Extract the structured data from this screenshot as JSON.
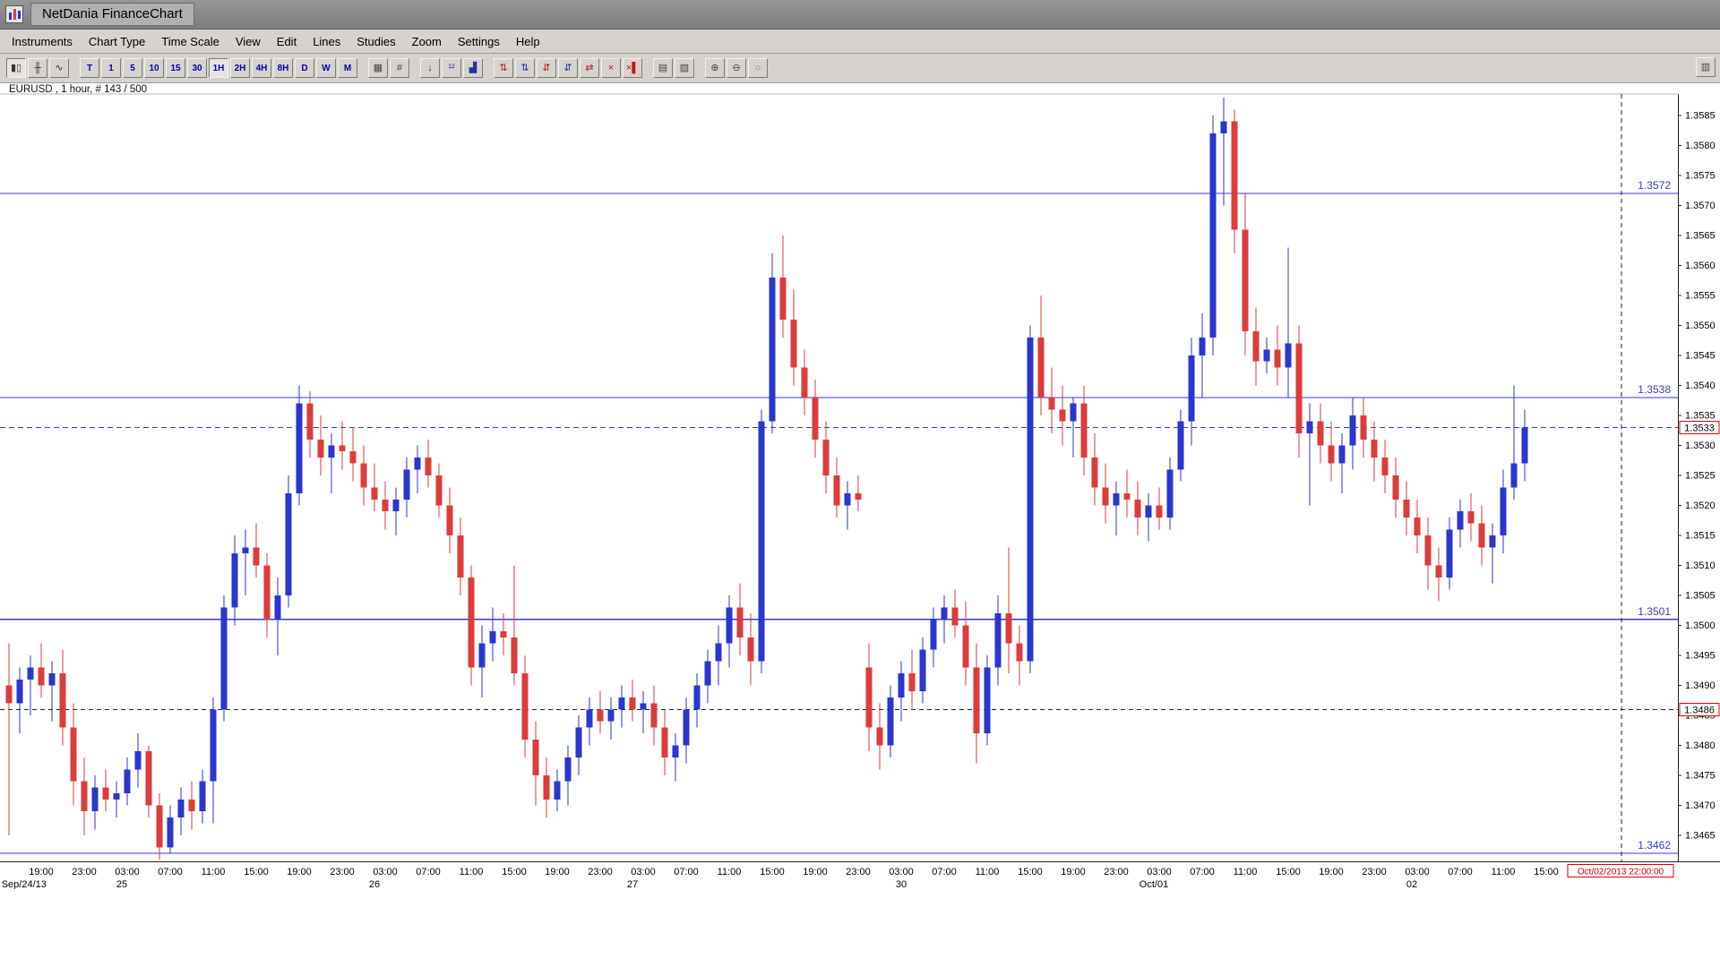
{
  "window": {
    "title": "NetDania FinanceChart"
  },
  "menu": {
    "items": [
      "Instruments",
      "Chart Type",
      "Time Scale",
      "View",
      "Edit",
      "Lines",
      "Studies",
      "Zoom",
      "Settings",
      "Help"
    ]
  },
  "toolbar": {
    "groups": [
      {
        "name": "chart-type",
        "buttons": [
          {
            "name": "candlestick-chart-button",
            "glyph": "▮▯",
            "selected": true,
            "color": "#333333"
          },
          {
            "name": "bar-chart-button",
            "glyph": "╫",
            "color": "#333333"
          },
          {
            "name": "line-chart-button",
            "glyph": "∿",
            "color": "#333333"
          }
        ]
      },
      {
        "name": "timeframes",
        "buttons": [
          {
            "name": "timeframe-tick-button",
            "label": "T"
          },
          {
            "name": "timeframe-1m-button",
            "label": "1"
          },
          {
            "name": "timeframe-5m-button",
            "label": "5"
          },
          {
            "name": "timeframe-10m-button",
            "label": "10"
          },
          {
            "name": "timeframe-15m-button",
            "label": "15"
          },
          {
            "name": "timeframe-30m-button",
            "label": "30"
          },
          {
            "name": "timeframe-1h-button",
            "label": "1H",
            "selected": true
          },
          {
            "name": "timeframe-2h-button",
            "label": "2H"
          },
          {
            "name": "timeframe-4h-button",
            "label": "4H"
          },
          {
            "name": "timeframe-8h-button",
            "label": "8H"
          },
          {
            "name": "timeframe-1d-button",
            "label": "D"
          },
          {
            "name": "timeframe-1w-button",
            "label": "W"
          },
          {
            "name": "timeframe-1mo-button",
            "label": "M"
          }
        ]
      },
      {
        "name": "layout",
        "buttons": [
          {
            "name": "grid-button",
            "glyph": "▦",
            "color": "#444444"
          },
          {
            "name": "crosshair-button",
            "glyph": "#",
            "color": "#444444"
          }
        ]
      },
      {
        "name": "annotations",
        "buttons": [
          {
            "name": "data-cursor-button",
            "glyph": "↓",
            "color": "#223399"
          },
          {
            "name": "price-levels-button",
            "glyph": "¹²",
            "color": "#223399"
          },
          {
            "name": "volume-button",
            "glyph": "▟",
            "color": "#223399"
          }
        ]
      },
      {
        "name": "signals",
        "buttons": [
          {
            "name": "arrows-up-down-red-button",
            "glyph": "⇅",
            "color": "#aa2222"
          },
          {
            "name": "arrows-up-down-blue-button",
            "glyph": "⇅",
            "color": "#2233aa"
          },
          {
            "name": "arrows-pair-red-button",
            "glyph": "⇵",
            "color": "#aa2222"
          },
          {
            "name": "arrows-pair-blue-button",
            "glyph": "⇵",
            "color": "#2233aa"
          },
          {
            "name": "edit-signals-button",
            "glyph": "⇄",
            "color": "#aa2222"
          },
          {
            "name": "delete-signal-button",
            "glyph": "×",
            "color": "#cc1111"
          },
          {
            "name": "delete-all-signals-button",
            "glyph": "×▌",
            "color": "#cc1111"
          }
        ]
      },
      {
        "name": "print",
        "buttons": [
          {
            "name": "print-button",
            "glyph": "▤",
            "color": "#444444"
          },
          {
            "name": "print-preview-button",
            "glyph": "▧",
            "color": "#444444"
          }
        ]
      },
      {
        "name": "zoom",
        "buttons": [
          {
            "name": "zoom-in-button",
            "glyph": "⊕",
            "color": "#444444"
          },
          {
            "name": "zoom-out-button",
            "glyph": "⊖",
            "color": "#444444"
          },
          {
            "name": "zoom-reset-button",
            "glyph": "○",
            "color": "#777777"
          }
        ]
      }
    ],
    "right_buttons": [
      {
        "name": "panel-toggle-button",
        "glyph": "▥",
        "color": "#444444"
      }
    ]
  },
  "chart_info": "EURUSD , 1 hour, # 143 / 500",
  "chart_data": {
    "type": "candlestick",
    "symbol": "EURUSD",
    "timeframe": "1 hour",
    "up_color": "#2b35cf",
    "down_color": "#de3b3b",
    "line_color": "#3a3ac8",
    "h_lines": [
      1.3572,
      1.3538,
      1.3501,
      1.3462
    ],
    "price_line": {
      "value": 1.3533,
      "label": "1.3533",
      "color": "#3a3ac8"
    },
    "dashed_line": {
      "value": 1.3486,
      "label": "1.3486",
      "color": "#222222"
    },
    "v_line": {
      "slot": 150,
      "label": "Oct/02/2013 22:00:00"
    },
    "y_axis": {
      "step": 0.0005,
      "labels": [
        "1.3585",
        "1.3580",
        "1.3575",
        "1.3570",
        "1.3565",
        "1.3560",
        "1.3555",
        "1.3550",
        "1.3545",
        "1.3540",
        "1.3535",
        "1.3530",
        "1.3525",
        "1.3520",
        "1.3515",
        "1.3510",
        "1.3505",
        "1.3500",
        "1.3495",
        "1.3490",
        "1.3485",
        "1.3480",
        "1.3475",
        "1.3470",
        "1.3465"
      ]
    },
    "x_labels": [
      {
        "slot": 3,
        "text": "19:00"
      },
      {
        "slot": 7,
        "text": "23:00"
      },
      {
        "slot": 11,
        "text": "03:00"
      },
      {
        "slot": 15,
        "text": "07:00"
      },
      {
        "slot": 19,
        "text": "11:00"
      },
      {
        "slot": 23,
        "text": "15:00"
      },
      {
        "slot": 27,
        "text": "19:00"
      },
      {
        "slot": 31,
        "text": "23:00"
      },
      {
        "slot": 35,
        "text": "03:00"
      },
      {
        "slot": 39,
        "text": "07:00"
      },
      {
        "slot": 43,
        "text": "11:00"
      },
      {
        "slot": 47,
        "text": "15:00"
      },
      {
        "slot": 51,
        "text": "19:00"
      },
      {
        "slot": 55,
        "text": "23:00"
      },
      {
        "slot": 59,
        "text": "03:00"
      },
      {
        "slot": 63,
        "text": "07:00"
      },
      {
        "slot": 67,
        "text": "11:00"
      },
      {
        "slot": 71,
        "text": "15:00"
      },
      {
        "slot": 75,
        "text": "19:00"
      },
      {
        "slot": 79,
        "text": "23:00"
      },
      {
        "slot": 83,
        "text": "03:00"
      },
      {
        "slot": 87,
        "text": "07:00"
      },
      {
        "slot": 91,
        "text": "11:00"
      },
      {
        "slot": 95,
        "text": "15:00"
      },
      {
        "slot": 99,
        "text": "19:00"
      },
      {
        "slot": 103,
        "text": "23:00"
      },
      {
        "slot": 107,
        "text": "03:00"
      },
      {
        "slot": 111,
        "text": "07:00"
      },
      {
        "slot": 115,
        "text": "11:00"
      },
      {
        "slot": 119,
        "text": "15:00"
      },
      {
        "slot": 123,
        "text": "19:00"
      },
      {
        "slot": 127,
        "text": "23:00"
      },
      {
        "slot": 131,
        "text": "03:00"
      },
      {
        "slot": 135,
        "text": "07:00"
      },
      {
        "slot": 139,
        "text": "11:00"
      },
      {
        "slot": 143,
        "text": "15:00"
      }
    ],
    "date_labels": [
      {
        "slot": 1.4,
        "text": "Sep/24/13"
      },
      {
        "slot": 10.5,
        "text": "25"
      },
      {
        "slot": 34,
        "text": "26"
      },
      {
        "slot": 58,
        "text": "27"
      },
      {
        "slot": 83,
        "text": "30"
      },
      {
        "slot": 106.5,
        "text": "Oct/01"
      },
      {
        "slot": 130.5,
        "text": "02"
      }
    ],
    "candles": [
      [
        1.349,
        1.3497,
        1.3465,
        1.3487
      ],
      [
        1.3487,
        1.3493,
        1.3482,
        1.3491
      ],
      [
        1.3491,
        1.3495,
        1.3485,
        1.3493
      ],
      [
        1.3493,
        1.3497,
        1.3488,
        1.349
      ],
      [
        1.349,
        1.3494,
        1.3484,
        1.3492
      ],
      [
        1.3492,
        1.3496,
        1.348,
        1.3483
      ],
      [
        1.3483,
        1.3487,
        1.347,
        1.3474
      ],
      [
        1.3474,
        1.3478,
        1.3465,
        1.3469
      ],
      [
        1.3469,
        1.3475,
        1.3466,
        1.3473
      ],
      [
        1.3473,
        1.3476,
        1.3469,
        1.3471
      ],
      [
        1.3471,
        1.3474,
        1.3468,
        1.3472
      ],
      [
        1.3472,
        1.3478,
        1.347,
        1.3476
      ],
      [
        1.3476,
        1.3482,
        1.3473,
        1.3479
      ],
      [
        1.3479,
        1.348,
        1.3468,
        1.347
      ],
      [
        1.347,
        1.3472,
        1.3461,
        1.3463
      ],
      [
        1.3463,
        1.347,
        1.3462,
        1.3468
      ],
      [
        1.3468,
        1.3473,
        1.3465,
        1.3471
      ],
      [
        1.3471,
        1.3474,
        1.3466,
        1.3469
      ],
      [
        1.3469,
        1.3476,
        1.3467,
        1.3474
      ],
      [
        1.3474,
        1.3488,
        1.3467,
        1.3486
      ],
      [
        1.3486,
        1.3505,
        1.3484,
        1.3503
      ],
      [
        1.3503,
        1.3515,
        1.35,
        1.3512
      ],
      [
        1.3512,
        1.3516,
        1.3505,
        1.3513
      ],
      [
        1.3513,
        1.3517,
        1.3508,
        1.351
      ],
      [
        1.351,
        1.3512,
        1.3498,
        1.3501
      ],
      [
        1.3501,
        1.3508,
        1.3495,
        1.3505
      ],
      [
        1.3505,
        1.3525,
        1.3503,
        1.3522
      ],
      [
        1.3522,
        1.354,
        1.352,
        1.3537
      ],
      [
        1.3537,
        1.3539,
        1.3528,
        1.3531
      ],
      [
        1.3531,
        1.3535,
        1.3525,
        1.3528
      ],
      [
        1.3528,
        1.3532,
        1.3522,
        1.353
      ],
      [
        1.353,
        1.3534,
        1.3526,
        1.3529
      ],
      [
        1.3529,
        1.3533,
        1.3524,
        1.3527
      ],
      [
        1.3527,
        1.353,
        1.352,
        1.3523
      ],
      [
        1.3523,
        1.3527,
        1.3519,
        1.3521
      ],
      [
        1.3521,
        1.3524,
        1.3516,
        1.3519
      ],
      [
        1.3519,
        1.3523,
        1.3515,
        1.3521
      ],
      [
        1.3521,
        1.3528,
        1.3518,
        1.3526
      ],
      [
        1.3526,
        1.353,
        1.3522,
        1.3528
      ],
      [
        1.3528,
        1.3531,
        1.3523,
        1.3525
      ],
      [
        1.3525,
        1.3527,
        1.3518,
        1.352
      ],
      [
        1.352,
        1.3523,
        1.3512,
        1.3515
      ],
      [
        1.3515,
        1.3518,
        1.3505,
        1.3508
      ],
      [
        1.3508,
        1.351,
        1.349,
        1.3493
      ],
      [
        1.3493,
        1.35,
        1.3488,
        1.3497
      ],
      [
        1.3497,
        1.3503,
        1.3494,
        1.3499
      ],
      [
        1.3499,
        1.3502,
        1.3495,
        1.3498
      ],
      [
        1.3498,
        1.351,
        1.349,
        1.3492
      ],
      [
        1.3492,
        1.3495,
        1.3478,
        1.3481
      ],
      [
        1.3481,
        1.3484,
        1.347,
        1.3475
      ],
      [
        1.3475,
        1.3478,
        1.3468,
        1.3471
      ],
      [
        1.3471,
        1.3476,
        1.3469,
        1.3474
      ],
      [
        1.3474,
        1.348,
        1.347,
        1.3478
      ],
      [
        1.3478,
        1.3485,
        1.3475,
        1.3483
      ],
      [
        1.3483,
        1.3488,
        1.348,
        1.3486
      ],
      [
        1.3486,
        1.3489,
        1.3482,
        1.3484
      ],
      [
        1.3484,
        1.3488,
        1.3481,
        1.3486
      ],
      [
        1.3486,
        1.349,
        1.3483,
        1.3488
      ],
      [
        1.3488,
        1.3491,
        1.3484,
        1.3486
      ],
      [
        1.3486,
        1.3489,
        1.3482,
        1.3487
      ],
      [
        1.3487,
        1.349,
        1.348,
        1.3483
      ],
      [
        1.3483,
        1.3486,
        1.3475,
        1.3478
      ],
      [
        1.3478,
        1.3482,
        1.3474,
        1.348
      ],
      [
        1.348,
        1.3488,
        1.3477,
        1.3486
      ],
      [
        1.3486,
        1.3492,
        1.3483,
        1.349
      ],
      [
        1.349,
        1.3496,
        1.3487,
        1.3494
      ],
      [
        1.3494,
        1.35,
        1.349,
        1.3497
      ],
      [
        1.3497,
        1.3505,
        1.3493,
        1.3503
      ],
      [
        1.3503,
        1.3507,
        1.3495,
        1.3498
      ],
      [
        1.3498,
        1.3502,
        1.349,
        1.3494
      ],
      [
        1.3494,
        1.3536,
        1.3492,
        1.3534
      ],
      [
        1.3534,
        1.3562,
        1.3532,
        1.3558
      ],
      [
        1.3558,
        1.3565,
        1.3548,
        1.3551
      ],
      [
        1.3551,
        1.3556,
        1.354,
        1.3543
      ],
      [
        1.3543,
        1.3546,
        1.3535,
        1.3538
      ],
      [
        1.3538,
        1.3541,
        1.3528,
        1.3531
      ],
      [
        1.3531,
        1.3534,
        1.3522,
        1.3525
      ],
      [
        1.3525,
        1.3528,
        1.3518,
        1.352
      ],
      [
        1.352,
        1.3524,
        1.3516,
        1.3522
      ],
      [
        1.3522,
        1.3525,
        1.3519,
        1.3521
      ],
      [
        1.3493,
        1.3497,
        1.3479,
        1.3483
      ],
      [
        1.3483,
        1.3487,
        1.3476,
        1.348
      ],
      [
        1.348,
        1.349,
        1.3478,
        1.3488
      ],
      [
        1.3488,
        1.3494,
        1.3484,
        1.3492
      ],
      [
        1.3492,
        1.3496,
        1.3486,
        1.3489
      ],
      [
        1.3489,
        1.3498,
        1.3487,
        1.3496
      ],
      [
        1.3496,
        1.3503,
        1.3493,
        1.3501
      ],
      [
        1.3501,
        1.3505,
        1.3497,
        1.3503
      ],
      [
        1.3503,
        1.3506,
        1.3498,
        1.35
      ],
      [
        1.35,
        1.3504,
        1.349,
        1.3493
      ],
      [
        1.3493,
        1.3497,
        1.3477,
        1.3482
      ],
      [
        1.3482,
        1.3495,
        1.348,
        1.3493
      ],
      [
        1.3493,
        1.3505,
        1.349,
        1.3502
      ],
      [
        1.3502,
        1.3513,
        1.3492,
        1.3497
      ],
      [
        1.3497,
        1.35,
        1.349,
        1.3494
      ],
      [
        1.3494,
        1.355,
        1.3492,
        1.3548
      ],
      [
        1.3548,
        1.3555,
        1.3535,
        1.3538
      ],
      [
        1.3538,
        1.3543,
        1.3532,
        1.3536
      ],
      [
        1.3536,
        1.354,
        1.353,
        1.3534
      ],
      [
        1.3534,
        1.3538,
        1.3528,
        1.3537
      ],
      [
        1.3537,
        1.354,
        1.3525,
        1.3528
      ],
      [
        1.3528,
        1.3532,
        1.352,
        1.3523
      ],
      [
        1.3523,
        1.3527,
        1.3517,
        1.352
      ],
      [
        1.352,
        1.3524,
        1.3515,
        1.3522
      ],
      [
        1.3522,
        1.3526,
        1.3518,
        1.3521
      ],
      [
        1.3521,
        1.3524,
        1.3515,
        1.3518
      ],
      [
        1.3518,
        1.3522,
        1.3514,
        1.352
      ],
      [
        1.352,
        1.3523,
        1.3516,
        1.3518
      ],
      [
        1.3518,
        1.3528,
        1.3516,
        1.3526
      ],
      [
        1.3526,
        1.3536,
        1.3524,
        1.3534
      ],
      [
        1.3534,
        1.3548,
        1.353,
        1.3545
      ],
      [
        1.3545,
        1.3552,
        1.3538,
        1.3548
      ],
      [
        1.3548,
        1.3585,
        1.3545,
        1.3582
      ],
      [
        1.3582,
        1.3588,
        1.357,
        1.3584
      ],
      [
        1.3584,
        1.3586,
        1.3562,
        1.3566
      ],
      [
        1.3566,
        1.3572,
        1.3545,
        1.3549
      ],
      [
        1.3549,
        1.3553,
        1.354,
        1.3544
      ],
      [
        1.3544,
        1.3548,
        1.3542,
        1.3546
      ],
      [
        1.3546,
        1.355,
        1.354,
        1.3543
      ],
      [
        1.3543,
        1.3563,
        1.3538,
        1.3547
      ],
      [
        1.3547,
        1.355,
        1.3528,
        1.3532
      ],
      [
        1.3532,
        1.3537,
        1.352,
        1.3534
      ],
      [
        1.3534,
        1.3537,
        1.3527,
        1.353
      ],
      [
        1.353,
        1.3534,
        1.3524,
        1.3527
      ],
      [
        1.3527,
        1.3532,
        1.3522,
        1.353
      ],
      [
        1.353,
        1.3538,
        1.3526,
        1.3535
      ],
      [
        1.3535,
        1.3538,
        1.3528,
        1.3531
      ],
      [
        1.3531,
        1.3534,
        1.3524,
        1.3528
      ],
      [
        1.3528,
        1.3531,
        1.3522,
        1.3525
      ],
      [
        1.3525,
        1.3528,
        1.3518,
        1.3521
      ],
      [
        1.3521,
        1.3524,
        1.3515,
        1.3518
      ],
      [
        1.3518,
        1.3521,
        1.3512,
        1.3515
      ],
      [
        1.3515,
        1.3518,
        1.3506,
        1.351
      ],
      [
        1.351,
        1.3513,
        1.3504,
        1.3508
      ],
      [
        1.3508,
        1.3518,
        1.3506,
        1.3516
      ],
      [
        1.3516,
        1.3521,
        1.3513,
        1.3519
      ],
      [
        1.3519,
        1.3522,
        1.3514,
        1.3517
      ],
      [
        1.3517,
        1.352,
        1.351,
        1.3513
      ],
      [
        1.3513,
        1.3517,
        1.3507,
        1.3515
      ],
      [
        1.3515,
        1.3526,
        1.3512,
        1.3523
      ],
      [
        1.3523,
        1.354,
        1.3521,
        1.3527
      ],
      [
        1.3527,
        1.3536,
        1.3524,
        1.3533
      ]
    ]
  }
}
